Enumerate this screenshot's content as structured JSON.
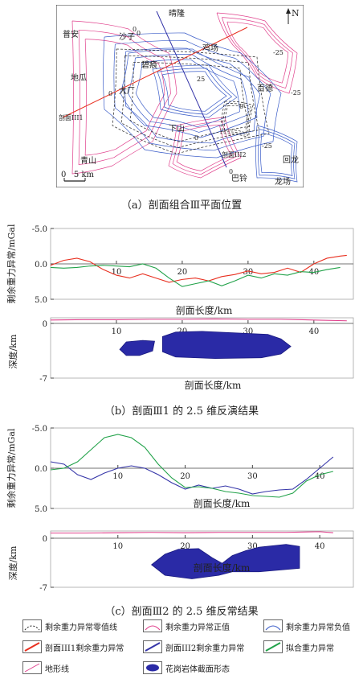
{
  "map": {
    "north_label": "N",
    "place_labels": [
      "晴隆",
      "普安",
      "沙子",
      "鸡场",
      "碧痕",
      "地瓜",
      "大厂",
      "百德",
      "剖面III1",
      "下山",
      "剖面III2",
      "青山",
      "巴铃",
      "回龙",
      "龙场"
    ],
    "contour_labels": [
      "0",
      "0",
      "-25",
      "25",
      "-25",
      "0",
      "0",
      "-25",
      "0",
      "0"
    ],
    "scale_label": "0   5 km",
    "colors": {
      "positive": "#e0408c",
      "negative": "#3a5cc8",
      "zero": "#222222",
      "profile1": "#e83020",
      "profile2": "#3535a8"
    }
  },
  "captions": {
    "a": "（a）剖面组合Ⅲ平面位置",
    "b": "（b）剖面Ⅲ1 的 2.5 维反演结果",
    "c": "（c）剖面Ⅲ2 的 2.5 维反常结果"
  },
  "chart_data": [
    {
      "type": "line",
      "id": "III1-anomaly",
      "ylabel": "剩余重力异常/mGal",
      "xlabel": "剖面长度/km",
      "x_ticks": [
        "10",
        "20",
        "30",
        "40"
      ],
      "y_ticks": [
        "-5.0",
        "0.0",
        "5.0"
      ],
      "xlim": [
        0,
        46
      ],
      "ylim": [
        -5,
        5
      ],
      "y_inverted": true,
      "series": [
        {
          "key": "observed",
          "color": "#e83020",
          "x": [
            0,
            2,
            4,
            6,
            8,
            10,
            12,
            14,
            16,
            18,
            20,
            22,
            24,
            26,
            28,
            30,
            32,
            34,
            36,
            38,
            40,
            42,
            44,
            45
          ],
          "y": [
            0.2,
            -0.5,
            -0.8,
            -0.3,
            0.8,
            1.6,
            2.0,
            1.4,
            2.0,
            2.6,
            2.2,
            2.0,
            2.4,
            1.8,
            1.5,
            1.0,
            1.4,
            1.2,
            0.6,
            1.2,
            0.0,
            -0.8,
            -1.1,
            -1.2
          ]
        },
        {
          "key": "fitted",
          "color": "#22a24a",
          "x": [
            0,
            2,
            4,
            6,
            8,
            10,
            12,
            14,
            16,
            18,
            20,
            22,
            24,
            26,
            28,
            30,
            32,
            34,
            36,
            38,
            40,
            42,
            44
          ],
          "y": [
            0.5,
            0.6,
            0.5,
            0.3,
            0.2,
            0.3,
            0.4,
            0.0,
            0.6,
            2.0,
            3.2,
            2.8,
            2.4,
            3.1,
            2.4,
            1.6,
            2.0,
            1.4,
            1.6,
            1.1,
            1.2,
            0.8,
            0.5
          ]
        }
      ]
    },
    {
      "type": "line",
      "id": "III1-section",
      "ylabel": "深度/km",
      "xlabel": "剖面长度/km",
      "x_ticks": [
        "10",
        "20",
        "30",
        "40"
      ],
      "y_ticks": [
        "0",
        "-7"
      ],
      "xlim": [
        0,
        46
      ],
      "ylim": [
        -7,
        1
      ],
      "series": [
        {
          "key": "terrain",
          "color": "#e0408c",
          "x": [
            0,
            5,
            10,
            15,
            20,
            25,
            30,
            35,
            40,
            45
          ],
          "y": [
            0.7,
            0.75,
            0.75,
            0.8,
            0.8,
            0.85,
            0.8,
            0.8,
            0.7,
            0.6
          ]
        }
      ],
      "bodies": [
        {
          "points": [
            [
              10.5,
              -3.2
            ],
            [
              11.5,
              -2.2
            ],
            [
              14,
              -2.0
            ],
            [
              15.8,
              -2.1
            ],
            [
              15.5,
              -3.4
            ],
            [
              13.5,
              -4.0
            ],
            [
              11.5,
              -4.0
            ]
          ]
        },
        {
          "points": [
            [
              17,
              -1.5
            ],
            [
              19,
              -0.9
            ],
            [
              23,
              -0.8
            ],
            [
              28,
              -1.0
            ],
            [
              33,
              -1.2
            ],
            [
              35,
              -1.8
            ],
            [
              36.5,
              -2.8
            ],
            [
              35,
              -3.8
            ],
            [
              32,
              -4.3
            ],
            [
              25,
              -4.4
            ],
            [
              19,
              -4.2
            ],
            [
              17,
              -3.5
            ]
          ]
        }
      ]
    },
    {
      "type": "line",
      "id": "III2-anomaly",
      "ylabel": "剩余重力异常/mGal",
      "xlabel": "剖面长度/km",
      "x_ticks": [
        "10",
        "20",
        "30",
        "40"
      ],
      "y_ticks": [
        "-5.0",
        "0.0",
        "5.0"
      ],
      "xlim": [
        0,
        45
      ],
      "ylim": [
        -5,
        5
      ],
      "y_inverted": true,
      "series": [
        {
          "key": "observed",
          "color": "#3535a8",
          "x": [
            0,
            2,
            4,
            6,
            8,
            10,
            12,
            14,
            16,
            18,
            20,
            22,
            24,
            26,
            28,
            30,
            32,
            34,
            36,
            38,
            40,
            42
          ],
          "y": [
            -0.8,
            -0.5,
            0.8,
            1.4,
            0.6,
            0.0,
            -0.3,
            0.0,
            0.8,
            1.8,
            2.6,
            2.1,
            2.5,
            2.2,
            2.6,
            3.2,
            2.9,
            2.7,
            2.6,
            1.4,
            0.0,
            -1.4
          ]
        },
        {
          "key": "fitted",
          "color": "#22a24a",
          "x": [
            0,
            2,
            4,
            6,
            8,
            10,
            12,
            14,
            16,
            18,
            20,
            22,
            24,
            26,
            28,
            30,
            32,
            34,
            36,
            38,
            40,
            42
          ],
          "y": [
            0.2,
            0.0,
            -0.8,
            -2.3,
            -3.8,
            -4.2,
            -3.8,
            -2.6,
            -0.5,
            1.2,
            2.4,
            2.3,
            2.5,
            2.9,
            3.1,
            3.4,
            3.5,
            3.6,
            3.1,
            1.6,
            0.8,
            0.4
          ]
        }
      ]
    },
    {
      "type": "line",
      "id": "III2-section",
      "ylabel": "深度/km",
      "xlabel": "剖面长度/km",
      "x_ticks": [
        "10",
        "20",
        "30",
        "40"
      ],
      "y_ticks": [
        "0",
        "-7"
      ],
      "xlim": [
        0,
        45
      ],
      "ylim": [
        -7,
        1
      ],
      "series": [
        {
          "key": "terrain",
          "color": "#e0408c",
          "x": [
            0,
            5,
            10,
            15,
            20,
            25,
            30,
            35,
            40,
            42
          ],
          "y": [
            0.7,
            0.7,
            0.75,
            0.8,
            0.75,
            0.8,
            0.8,
            0.8,
            0.9,
            0.75
          ]
        }
      ],
      "bodies": [
        {
          "points": [
            [
              15,
              -3.8
            ],
            [
              17,
              -2.3
            ],
            [
              19,
              -1.6
            ],
            [
              22,
              -1.5
            ],
            [
              24,
              -2.8
            ],
            [
              25.5,
              -3.6
            ],
            [
              27,
              -2.5
            ],
            [
              29,
              -1.8
            ],
            [
              31,
              -1.3
            ],
            [
              35,
              -0.9
            ],
            [
              37,
              -1.2
            ],
            [
              37,
              -4.3
            ],
            [
              31,
              -4.8
            ],
            [
              27,
              -4.8
            ],
            [
              25,
              -5.3
            ],
            [
              21,
              -5.8
            ],
            [
              17,
              -5.3
            ]
          ]
        }
      ]
    }
  ],
  "legend": [
    {
      "key": "zero",
      "label": "剩余重力异常零值线"
    },
    {
      "key": "positive",
      "label": "剩余重力异常正值"
    },
    {
      "key": "negative",
      "label": "剩余重力异常负值"
    },
    {
      "key": "prof1",
      "label": "剖面III1剩余重力异常"
    },
    {
      "key": "prof2",
      "label": "剖面III2剩余重力异常"
    },
    {
      "key": "fit",
      "label": "拟合重力异常"
    },
    {
      "key": "terrain",
      "label": "地形线"
    },
    {
      "key": "body",
      "label": "花岗岩体截面形态"
    }
  ]
}
